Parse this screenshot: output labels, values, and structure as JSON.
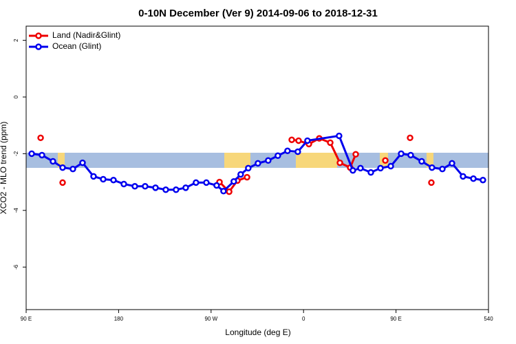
{
  "chart_data": {
    "type": "line",
    "title": "0-10N December (Ver 9)   2014-09-06 to 2018-12-31",
    "xlabel": "Longitude (deg E)",
    "ylabel": "XCO2 - MLO trend (ppm)",
    "xlim": [
      90,
      540
    ],
    "ylim": [
      -7.5,
      2.5
    ],
    "xticks": [
      {
        "value": 90,
        "label": "90 E"
      },
      180,
      {
        "value": 270,
        "label": "90 W"
      },
      {
        "value": 360,
        "label": "0"
      },
      {
        "value": 450,
        "label": "90 E"
      },
      540
    ],
    "yticks": [
      2,
      0,
      -2,
      -4,
      -6
    ],
    "legend": "top-left",
    "series": [
      {
        "name": "Land (Nadir&Glint)",
        "color": "#ee0000",
        "x": [
          104.1,
          null,
          125.5,
          null,
          278.2,
          287.6,
          295.6,
          305,
          null,
          348.5,
          355.2,
          365.2,
          375.3,
          386,
          395.4,
          405.4,
          410.8,
          null,
          439.6,
          null,
          463.7,
          null,
          484.4
        ],
        "values": [
          -1.44,
          null,
          -3.02,
          null,
          -3.0,
          -3.34,
          -2.95,
          -2.83,
          null,
          -1.51,
          -1.54,
          -1.66,
          -1.46,
          -1.61,
          -2.32,
          -2.49,
          -2.02,
          null,
          -2.24,
          null,
          -1.44,
          null,
          -3.02
        ]
      },
      {
        "name": "Ocean (Glint)",
        "color": "#0000ee",
        "x": [
          95.4,
          105.4,
          116.1,
          125.5,
          135.5,
          144.9,
          155.6,
          165,
          175,
          185.1,
          195.8,
          205.8,
          215.9,
          225.9,
          235.9,
          245.3,
          255.3,
          265.4,
          275.4,
          282.1,
          292.1,
          298.8,
          306.2,
          315.6,
          325.6,
          335,
          344.4,
          354.4,
          363.8,
          394.6,
          408,
          415.4,
          425.5,
          434.9,
          444.9,
          455,
          464.3,
          475,
          485,
          495.1,
          504.5,
          515.2,
          525.3,
          534.6
        ],
        "values": [
          -2.0,
          -2.05,
          -2.27,
          -2.49,
          -2.54,
          -2.32,
          -2.8,
          -2.9,
          -2.93,
          -3.07,
          -3.15,
          -3.15,
          -3.2,
          -3.27,
          -3.27,
          -3.2,
          -3.02,
          -3.02,
          -3.12,
          -3.32,
          -2.98,
          -2.73,
          -2.51,
          -2.34,
          -2.24,
          -2.07,
          -1.9,
          -1.93,
          -1.54,
          -1.37,
          -2.59,
          -2.51,
          -2.66,
          -2.51,
          -2.44,
          -2.0,
          -2.05,
          -2.27,
          -2.49,
          -2.54,
          -2.34,
          -2.8,
          -2.88,
          -2.93
        ]
      }
    ]
  }
}
